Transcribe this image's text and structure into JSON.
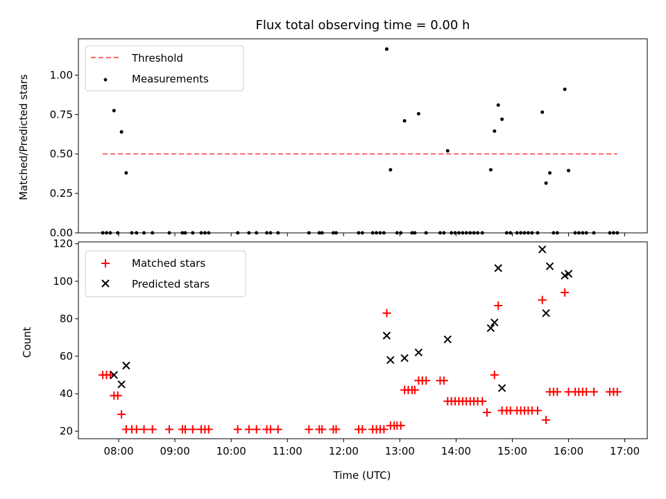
{
  "chart_data": [
    {
      "type": "scatter",
      "title": "Flux total observing time = 0.00 h",
      "ylabel": "Matched/Predicted stars",
      "xlabel": "",
      "xlim": [
        "07:17",
        "17:24"
      ],
      "ylim": [
        0,
        1.23
      ],
      "yticks": [
        "0.00",
        "0.25",
        "0.50",
        "0.75",
        "1.00"
      ],
      "legend": {
        "position": "top-left"
      },
      "threshold": {
        "name": "Threshold",
        "value": 0.5,
        "color": "#ff6666",
        "x_range": [
          "07:43",
          "16:52"
        ]
      },
      "series": [
        {
          "name": "Measurements",
          "color": "#000000",
          "points": [
            [
              "07:43",
              0
            ],
            [
              "07:47",
              0
            ],
            [
              "07:51",
              0
            ],
            [
              "07:55",
              0.775
            ],
            [
              "07:59",
              0
            ],
            [
              "08:03",
              0.64
            ],
            [
              "08:08",
              0.38
            ],
            [
              "08:14",
              0
            ],
            [
              "08:19",
              0
            ],
            [
              "08:27",
              0
            ],
            [
              "08:36",
              0
            ],
            [
              "08:54",
              0
            ],
            [
              "09:08",
              0
            ],
            [
              "09:11",
              0
            ],
            [
              "09:19",
              0
            ],
            [
              "09:28",
              0
            ],
            [
              "09:32",
              0
            ],
            [
              "09:36",
              0
            ],
            [
              "10:07",
              0
            ],
            [
              "10:19",
              0
            ],
            [
              "10:27",
              0
            ],
            [
              "10:38",
              0
            ],
            [
              "10:42",
              0
            ],
            [
              "10:50",
              0
            ],
            [
              "11:23",
              0
            ],
            [
              "11:34",
              0
            ],
            [
              "11:37",
              0
            ],
            [
              "11:49",
              0
            ],
            [
              "11:52",
              0
            ],
            [
              "12:16",
              0
            ],
            [
              "12:20",
              0
            ],
            [
              "12:31",
              0
            ],
            [
              "12:35",
              0
            ],
            [
              "12:39",
              0
            ],
            [
              "12:43",
              0
            ],
            [
              "12:46",
              1.165
            ],
            [
              "12:50",
              0.4
            ],
            [
              "12:57",
              0
            ],
            [
              "13:01",
              0
            ],
            [
              "13:05",
              0.71
            ],
            [
              "13:13",
              0
            ],
            [
              "13:16",
              0
            ],
            [
              "13:20",
              0.755
            ],
            [
              "13:28",
              0
            ],
            [
              "13:43",
              0
            ],
            [
              "13:47",
              0
            ],
            [
              "13:51",
              0.52
            ],
            [
              "13:55",
              0
            ],
            [
              "13:59",
              0
            ],
            [
              "14:03",
              0
            ],
            [
              "14:07",
              0
            ],
            [
              "14:11",
              0
            ],
            [
              "14:15",
              0
            ],
            [
              "14:19",
              0
            ],
            [
              "14:23",
              0
            ],
            [
              "14:28",
              0
            ],
            [
              "14:37",
              0.4
            ],
            [
              "14:41",
              0.645
            ],
            [
              "14:45",
              0.81
            ],
            [
              "14:49",
              0.72
            ],
            [
              "14:54",
              0
            ],
            [
              "14:58",
              0
            ],
            [
              "15:05",
              0
            ],
            [
              "15:09",
              0
            ],
            [
              "15:13",
              0
            ],
            [
              "15:17",
              0
            ],
            [
              "15:21",
              0
            ],
            [
              "15:27",
              0
            ],
            [
              "15:32",
              0.765
            ],
            [
              "15:36",
              0.315
            ],
            [
              "15:40",
              0.38
            ],
            [
              "15:44",
              0
            ],
            [
              "15:48",
              0
            ],
            [
              "15:56",
              0.91
            ],
            [
              "16:00",
              0.395
            ],
            [
              "16:07",
              0
            ],
            [
              "16:11",
              0
            ],
            [
              "16:15",
              0
            ],
            [
              "16:19",
              0
            ],
            [
              "16:27",
              0
            ],
            [
              "16:44",
              0
            ],
            [
              "16:48",
              0
            ],
            [
              "16:52",
              0
            ]
          ]
        }
      ]
    },
    {
      "type": "scatter",
      "title": "",
      "xlabel": "Time (UTC)",
      "ylabel": "Count",
      "xlim": [
        "07:17",
        "17:24"
      ],
      "ylim": [
        16,
        121
      ],
      "xticks": [
        "08:00",
        "09:00",
        "10:00",
        "11:00",
        "12:00",
        "13:00",
        "14:00",
        "15:00",
        "16:00",
        "17:00"
      ],
      "yticks": [
        "20",
        "40",
        "60",
        "80",
        "100",
        "120"
      ],
      "legend": {
        "position": "top-left"
      },
      "series": [
        {
          "name": "Matched stars",
          "marker": "plus",
          "color": "#ff0000",
          "points": [
            [
              "07:43",
              50
            ],
            [
              "07:47",
              50
            ],
            [
              "07:51",
              50
            ],
            [
              "07:55",
              39
            ],
            [
              "07:59",
              39
            ],
            [
              "08:03",
              29
            ],
            [
              "08:08",
              21
            ],
            [
              "08:14",
              21
            ],
            [
              "08:19",
              21
            ],
            [
              "08:27",
              21
            ],
            [
              "08:36",
              21
            ],
            [
              "08:54",
              21
            ],
            [
              "09:08",
              21
            ],
            [
              "09:11",
              21
            ],
            [
              "09:19",
              21
            ],
            [
              "09:28",
              21
            ],
            [
              "09:32",
              21
            ],
            [
              "09:36",
              21
            ],
            [
              "10:07",
              21
            ],
            [
              "10:19",
              21
            ],
            [
              "10:27",
              21
            ],
            [
              "10:38",
              21
            ],
            [
              "10:42",
              21
            ],
            [
              "10:50",
              21
            ],
            [
              "11:23",
              21
            ],
            [
              "11:34",
              21
            ],
            [
              "11:37",
              21
            ],
            [
              "11:49",
              21
            ],
            [
              "11:52",
              21
            ],
            [
              "12:16",
              21
            ],
            [
              "12:20",
              21
            ],
            [
              "12:31",
              21
            ],
            [
              "12:35",
              21
            ],
            [
              "12:39",
              21
            ],
            [
              "12:43",
              21
            ],
            [
              "12:46",
              83
            ],
            [
              "12:50",
              23
            ],
            [
              "12:54",
              23
            ],
            [
              "12:57",
              23
            ],
            [
              "13:01",
              23
            ],
            [
              "13:05",
              42
            ],
            [
              "13:09",
              42
            ],
            [
              "13:13",
              42
            ],
            [
              "13:16",
              42
            ],
            [
              "13:20",
              47
            ],
            [
              "13:24",
              47
            ],
            [
              "13:28",
              47
            ],
            [
              "13:43",
              47
            ],
            [
              "13:47",
              47
            ],
            [
              "13:51",
              36
            ],
            [
              "13:55",
              36
            ],
            [
              "13:59",
              36
            ],
            [
              "14:03",
              36
            ],
            [
              "14:07",
              36
            ],
            [
              "14:11",
              36
            ],
            [
              "14:15",
              36
            ],
            [
              "14:19",
              36
            ],
            [
              "14:23",
              36
            ],
            [
              "14:28",
              36
            ],
            [
              "14:33",
              30
            ],
            [
              "14:41",
              50
            ],
            [
              "14:45",
              87
            ],
            [
              "14:49",
              31
            ],
            [
              "14:54",
              31
            ],
            [
              "14:58",
              31
            ],
            [
              "15:05",
              31
            ],
            [
              "15:09",
              31
            ],
            [
              "15:13",
              31
            ],
            [
              "15:17",
              31
            ],
            [
              "15:21",
              31
            ],
            [
              "15:27",
              31
            ],
            [
              "15:32",
              90
            ],
            [
              "15:36",
              26
            ],
            [
              "15:40",
              41
            ],
            [
              "15:44",
              41
            ],
            [
              "15:48",
              41
            ],
            [
              "15:56",
              94
            ],
            [
              "16:00",
              41
            ],
            [
              "16:07",
              41
            ],
            [
              "16:11",
              41
            ],
            [
              "16:15",
              41
            ],
            [
              "16:19",
              41
            ],
            [
              "16:27",
              41
            ],
            [
              "16:44",
              41
            ],
            [
              "16:48",
              41
            ],
            [
              "16:52",
              41
            ]
          ]
        },
        {
          "name": "Predicted stars",
          "marker": "x",
          "color": "#000000",
          "points": [
            [
              "07:55",
              50
            ],
            [
              "08:03",
              45
            ],
            [
              "08:08",
              55
            ],
            [
              "12:46",
              71
            ],
            [
              "12:50",
              58
            ],
            [
              "13:05",
              59
            ],
            [
              "13:20",
              62
            ],
            [
              "13:51",
              69
            ],
            [
              "14:37",
              75
            ],
            [
              "14:41",
              78
            ],
            [
              "14:45",
              107
            ],
            [
              "14:49",
              43
            ],
            [
              "15:32",
              117
            ],
            [
              "15:36",
              83
            ],
            [
              "15:40",
              108
            ],
            [
              "15:56",
              103
            ],
            [
              "16:00",
              104
            ]
          ]
        }
      ]
    }
  ]
}
